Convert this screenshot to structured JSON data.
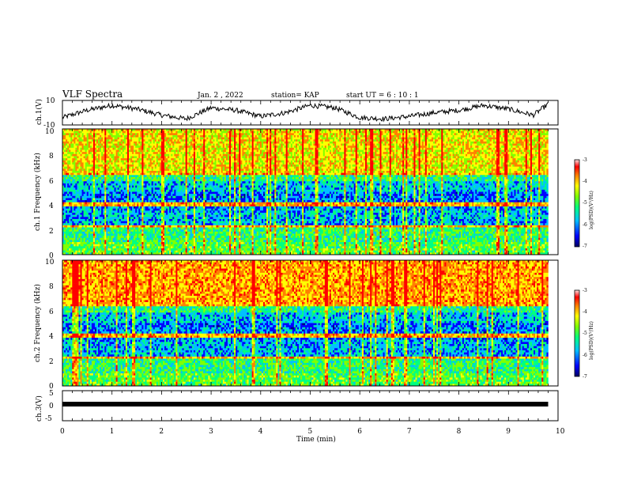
{
  "header": {
    "title": "VLF Spectra",
    "date": "Jan. 2 , 2022",
    "station": "station= KAP",
    "start": "start UT = 6 : 10 : 1"
  },
  "colors": {
    "spectrum": [
      "#000080",
      "#0000ff",
      "#00c0ff",
      "#00ff80",
      "#80ff00",
      "#ffff00",
      "#ff8000",
      "#ff0000",
      "#ffffff"
    ]
  },
  "chart_data": [
    {
      "type": "line",
      "panel": "ch1-waveform",
      "ylabel": "ch.1(V)",
      "ylim": [
        -10,
        10
      ],
      "yticklabels": [
        "10",
        "-10"
      ],
      "xlim": [
        0,
        10
      ],
      "grid": false,
      "x": [
        0,
        0.5,
        1,
        1.5,
        2,
        2.5,
        3,
        3.5,
        4,
        4.5,
        5,
        5.5,
        6,
        6.5,
        7,
        7.5,
        8,
        8.5,
        9,
        9.5,
        9.8
      ],
      "y": [
        -4,
        2,
        6,
        3,
        -2,
        -5,
        4,
        2,
        -3,
        0,
        6,
        4,
        -4,
        -5,
        -3,
        0,
        2,
        6,
        3,
        -2,
        7
      ]
    },
    {
      "type": "heatmap",
      "panel": "ch1-spectrogram",
      "ylabel": "ch.1 Frequency (kHz)",
      "ylim": [
        0,
        10
      ],
      "yticklabels": [
        "0",
        "2",
        "4",
        "6",
        "8",
        "10"
      ],
      "xlim": [
        0,
        10
      ],
      "data_extent_min": 9.8,
      "colorbar": {
        "label": "log(PSD)(V²/Hz)",
        "range": [
          -7,
          -3
        ],
        "ticklabels": [
          "-3",
          "-4",
          "-5",
          "-6",
          "-7"
        ]
      }
    },
    {
      "type": "heatmap",
      "panel": "ch2-spectrogram",
      "ylabel": "ch.2 Frequency (kHz)",
      "ylim": [
        0,
        10
      ],
      "yticklabels": [
        "0",
        "2",
        "4",
        "6",
        "8",
        "10"
      ],
      "xlim": [
        0,
        10
      ],
      "data_extent_min": 9.8,
      "colorbar": {
        "label": "log(PSD)(V²/Hz)",
        "range": [
          -7,
          -3
        ],
        "ticklabels": [
          "-3",
          "-4",
          "-5",
          "-6",
          "-7"
        ]
      }
    },
    {
      "type": "line",
      "panel": "ch3-waveform",
      "ylabel": "ch.3(V)",
      "ylim": [
        -5,
        5
      ],
      "yticklabels": [
        "5",
        "0",
        "-5"
      ],
      "xlim": [
        0,
        10
      ],
      "xlabel": "Time (min)",
      "xticklabels": [
        "0",
        "1",
        "2",
        "3",
        "4",
        "5",
        "6",
        "7",
        "8",
        "9",
        "10"
      ],
      "x": [
        0,
        9.8
      ],
      "y": [
        -1,
        -1
      ]
    }
  ]
}
